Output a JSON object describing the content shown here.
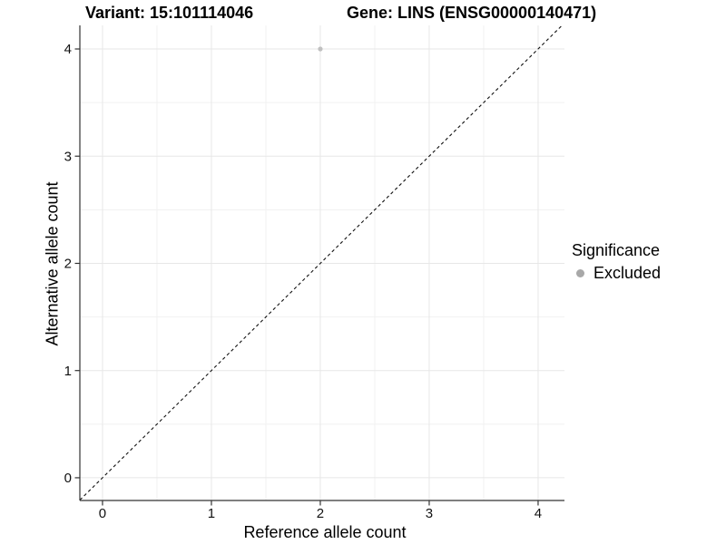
{
  "chart_data": {
    "type": "scatter",
    "title_left": "Variant: 15:101114046",
    "title_right": "Gene: LINS (ENSG00000140471)",
    "xlabel": "Reference allele count",
    "ylabel": "Alternative allele count",
    "xlim": [
      -0.208,
      4.242
    ],
    "ylim": [
      -0.212,
      4.22
    ],
    "x_major_ticks": [
      0,
      1,
      2,
      3,
      4
    ],
    "y_major_ticks": [
      0,
      1,
      2,
      3,
      4
    ],
    "x_minor_ticks": [
      0.5,
      1.5,
      2.5,
      3.5
    ],
    "y_minor_ticks": [
      0.5,
      1.5,
      2.5,
      3.5
    ],
    "grid": "major+minor",
    "points": [
      {
        "x": 2,
        "y": 4,
        "series": "Excluded"
      }
    ],
    "identity_line": {
      "type": "abline",
      "intercept": 0,
      "slope": 1,
      "style": "dashed"
    },
    "legend": {
      "title": "Significance",
      "position": "right",
      "items": [
        {
          "label": "Excluded",
          "color": "#a8a8a8"
        }
      ]
    }
  },
  "colors": {
    "background": "#ffffff",
    "grid_major": "#e7e7e7",
    "grid_minor": "#f1f1f1",
    "axis_line": "#333333",
    "tick_mark": "#333333",
    "tick_label": "#111111",
    "text": "#000000",
    "point": "#c0c0c0",
    "identity_line": "#111111"
  }
}
